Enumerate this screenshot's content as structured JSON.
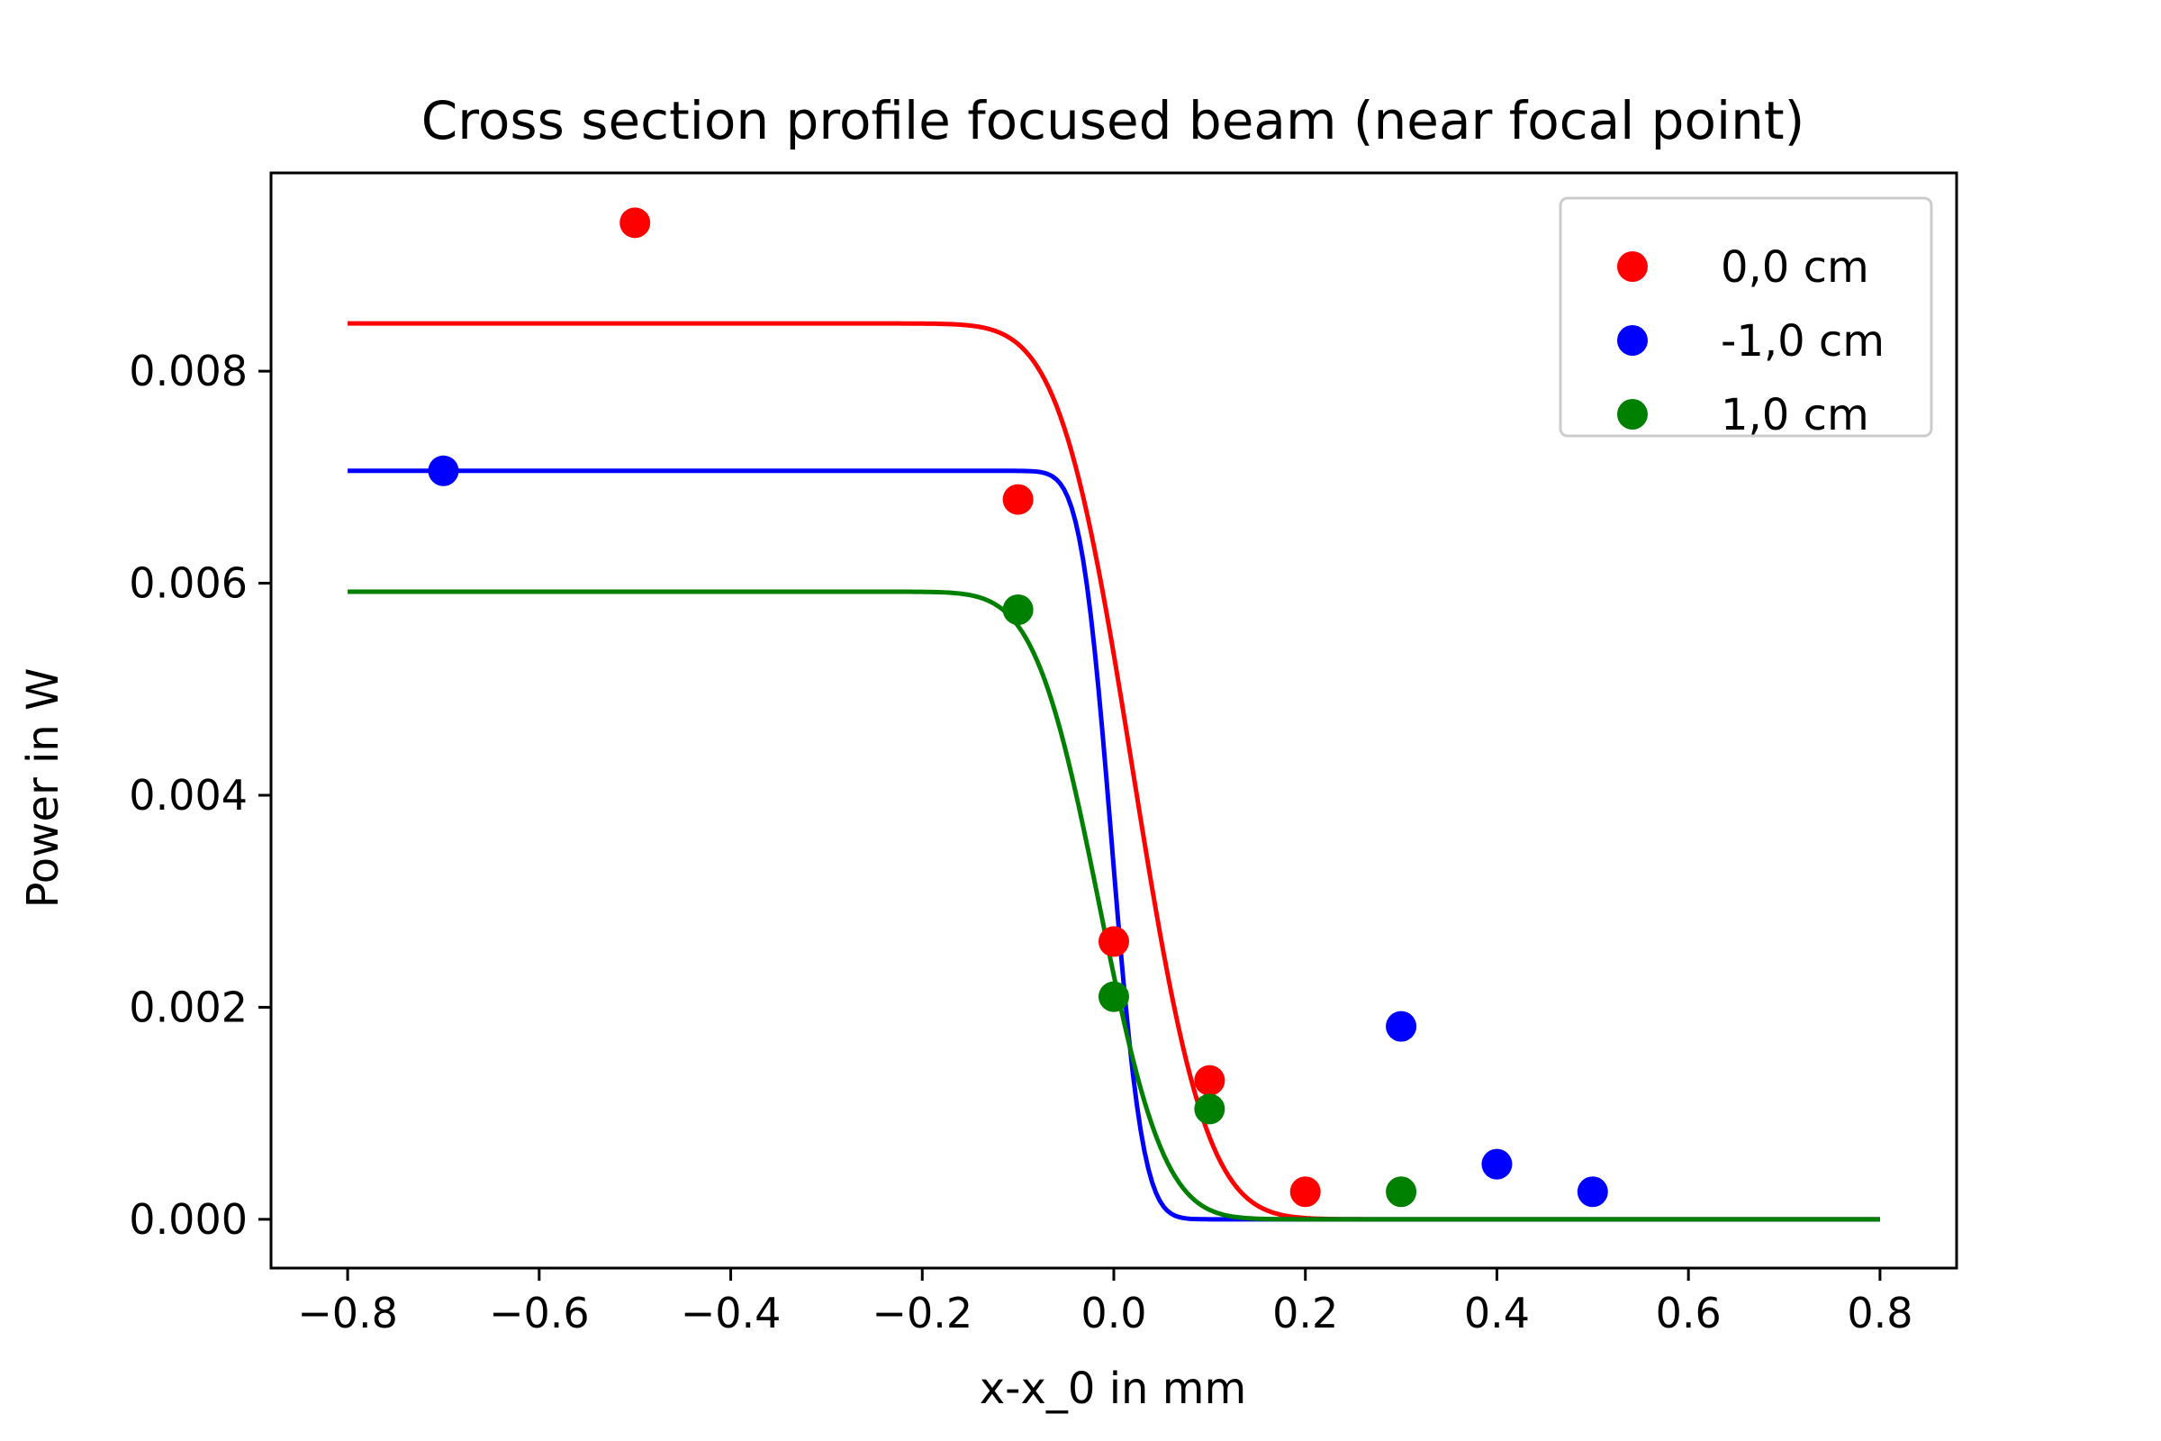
{
  "chart_data": {
    "type": "scatter",
    "title": "Cross section profile focused beam (near focal point)",
    "xlabel": "x-x_0 in mm",
    "ylabel": "Power in W",
    "xlim": [
      -0.88,
      0.88
    ],
    "ylim": [
      -0.00046,
      0.00987
    ],
    "xticks": [
      -0.8,
      -0.6,
      -0.4,
      -0.2,
      0.0,
      0.2,
      0.4,
      0.6,
      0.8
    ],
    "xtick_labels": [
      "−0.8",
      "−0.6",
      "−0.4",
      "−0.2",
      "0.0",
      "0.2",
      "0.4",
      "0.6",
      "0.8"
    ],
    "yticks": [
      0.0,
      0.002,
      0.004,
      0.006,
      0.008
    ],
    "ytick_labels": [
      "0.000",
      "0.002",
      "0.004",
      "0.006",
      "0.008"
    ],
    "grid": false,
    "legend_position": "top-right",
    "series": [
      {
        "name": "0,0 cm",
        "color": "#ff0000",
        "points": [
          [
            -0.5,
            0.0094
          ],
          [
            -0.1,
            0.00679
          ],
          [
            0.0,
            0.00262
          ],
          [
            0.1,
            0.00131
          ],
          [
            0.2,
            0.00026
          ]
        ],
        "fit": {
          "amplitude": 0.00845,
          "center": 0.02,
          "width": 0.085,
          "x_range": [
            -0.8,
            0.8
          ]
        }
      },
      {
        "name": "-1,0 cm",
        "color": "#0000ff",
        "points": [
          [
            -0.7,
            0.00706
          ],
          [
            0.3,
            0.00182
          ],
          [
            0.4,
            0.00052
          ],
          [
            0.5,
            0.00026
          ]
        ],
        "fit": {
          "amplitude": 0.00706,
          "center": -0.002,
          "width": 0.036,
          "x_range": [
            -0.8,
            0.8
          ]
        }
      },
      {
        "name": "1,0 cm",
        "color": "#008000",
        "points": [
          [
            -0.1,
            0.00575
          ],
          [
            0.0,
            0.0021
          ],
          [
            0.1,
            0.00104
          ],
          [
            0.3,
            0.00026
          ]
        ],
        "fit": {
          "amplitude": 0.00592,
          "center": -0.015,
          "width": 0.075,
          "x_range": [
            -0.8,
            0.8
          ]
        }
      }
    ]
  }
}
